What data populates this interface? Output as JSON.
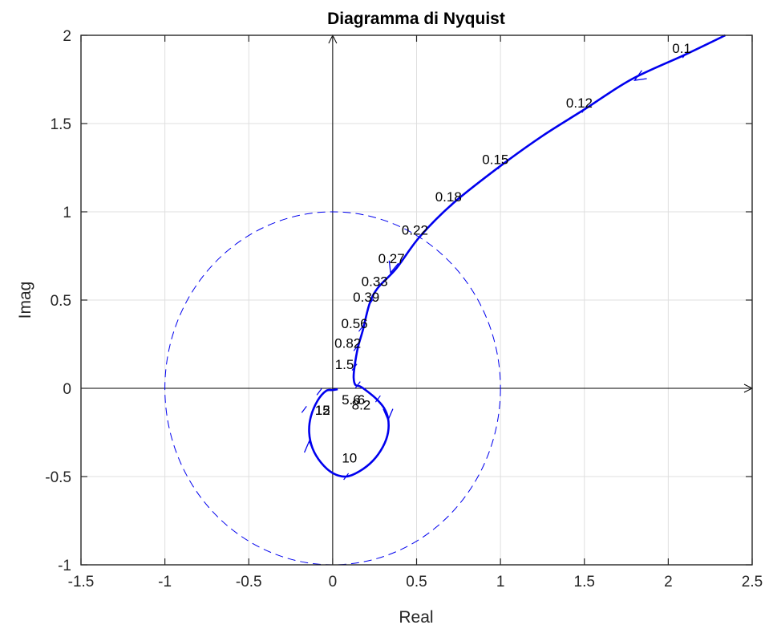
{
  "chart_data": {
    "type": "line",
    "title": "Diagramma di Nyquist",
    "xlabel": "Real",
    "ylabel": "Imag",
    "xlim": [
      -1.5,
      2.5
    ],
    "ylim": [
      -1,
      2
    ],
    "x_ticks": [
      "-1.5",
      "-1",
      "-0.5",
      "0",
      "0.5",
      "1",
      "1.5",
      "2",
      "2.5"
    ],
    "y_ticks": [
      "-1",
      "-0.5",
      "0",
      "0.5",
      "1",
      "1.5",
      "2"
    ],
    "grid": true,
    "series": [
      {
        "kind": "nyquist",
        "color": "#0000ee",
        "x": [
          2.34,
          2.1,
          1.78,
          1.5,
          1.25,
          1.0,
          0.72,
          0.52,
          0.38,
          0.27,
          0.22,
          0.18,
          0.15,
          0.13,
          0.125,
          0.135,
          0.165,
          0.21,
          0.26,
          0.305,
          0.33,
          0.33,
          0.3,
          0.24,
          0.16,
          0.08,
          0.0,
          -0.07,
          -0.12,
          -0.14,
          -0.13,
          -0.09,
          -0.04,
          0.0,
          0.03
        ],
        "y": [
          2.0,
          1.89,
          1.75,
          1.58,
          1.43,
          1.26,
          1.05,
          0.86,
          0.68,
          0.57,
          0.48,
          0.33,
          0.23,
          0.12,
          0.06,
          0.02,
          0.01,
          -0.02,
          -0.06,
          -0.11,
          -0.17,
          -0.25,
          -0.33,
          -0.41,
          -0.47,
          -0.5,
          -0.48,
          -0.42,
          -0.34,
          -0.25,
          -0.16,
          -0.07,
          -0.015,
          -0.01,
          -0.005
        ]
      },
      {
        "kind": "unit-circle",
        "color": "#0000ee",
        "dashed": true,
        "center": [
          0,
          0
        ],
        "radius": 1
      }
    ],
    "freq_labels": [
      {
        "text": "0.1",
        "x": 2.08,
        "y": 1.9,
        "tick_x": 2.1,
        "tick_y": 1.89
      },
      {
        "text": "0.12",
        "x": 1.47,
        "y": 1.59,
        "tick_x": 1.5,
        "tick_y": 1.58
      },
      {
        "text": "0.15",
        "x": 0.97,
        "y": 1.27,
        "tick_x": 1.0,
        "tick_y": 1.26
      },
      {
        "text": "0.18",
        "x": 0.69,
        "y": 1.06,
        "tick_x": 0.72,
        "tick_y": 1.05
      },
      {
        "text": "0.22",
        "x": 0.49,
        "y": 0.87,
        "tick_x": 0.52,
        "tick_y": 0.86
      },
      {
        "text": "0.27",
        "x": 0.35,
        "y": 0.71,
        "tick_x": 0.38,
        "tick_y": 0.68
      },
      {
        "text": "0.33",
        "x": 0.25,
        "y": 0.58,
        "tick_x": 0.27,
        "tick_y": 0.57
      },
      {
        "text": "0.39",
        "x": 0.2,
        "y": 0.49,
        "tick_x": 0.23,
        "tick_y": 0.49
      },
      {
        "text": "0.56",
        "x": 0.13,
        "y": 0.34,
        "tick_x": 0.17,
        "tick_y": 0.34
      },
      {
        "text": "0.82",
        "x": 0.09,
        "y": 0.23,
        "tick_x": 0.14,
        "tick_y": 0.23
      },
      {
        "text": "1.5",
        "x": 0.07,
        "y": 0.11,
        "tick_x": 0.13,
        "tick_y": 0.12
      },
      {
        "text": "5.6",
        "x": 0.11,
        "y": -0.09,
        "tick_x": 0.15,
        "tick_y": 0.02
      },
      {
        "text": "6",
        "x": 0.17,
        "y": -0.09,
        "tick_x": null,
        "tick_y": null
      },
      {
        "text": "8.2",
        "x": 0.17,
        "y": -0.12,
        "tick_x": 0.27,
        "tick_y": -0.06
      },
      {
        "text": "10",
        "x": 0.1,
        "y": -0.42,
        "tick_x": 0.08,
        "tick_y": -0.5
      },
      {
        "text": "12",
        "x": -0.06,
        "y": -0.15,
        "tick_x": -0.08,
        "tick_y": -0.02
      },
      {
        "text": "15",
        "x": -0.06,
        "y": -0.15,
        "tick_x": -0.17,
        "tick_y": -0.12
      }
    ],
    "arrows": [
      {
        "x": 1.8,
        "y": 1.745,
        "dx": -1,
        "dy": -0.6
      },
      {
        "x": 0.345,
        "y": 0.655,
        "dx": -0.3,
        "dy": -1
      },
      {
        "x": 0.33,
        "y": -0.18,
        "dx": 0,
        "dy": -1
      },
      {
        "x": -0.14,
        "y": -0.3,
        "dx": 0,
        "dy": 1
      }
    ]
  }
}
